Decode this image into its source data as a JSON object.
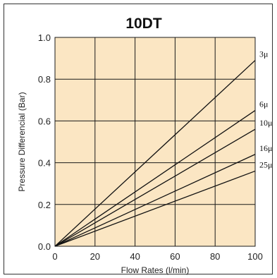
{
  "chart_data": {
    "type": "line",
    "title": "10DT",
    "xlabel": "Flow Rates (l/min)",
    "ylabel": "Pressure Differencial (Bar)",
    "xlim": [
      0,
      100
    ],
    "ylim": [
      0,
      1.0
    ],
    "x_ticks": [
      "0",
      "20",
      "40",
      "60",
      "80",
      "100"
    ],
    "y_ticks": [
      "0.0",
      "0.2",
      "0.4",
      "0.6",
      "0.8",
      "1.0"
    ],
    "grid": true,
    "legend": "inline labels at right end of lines",
    "colors": {
      "plot_background": "#fbe6c3",
      "grid": "#1a1a1a",
      "lines": "#111111"
    },
    "series": [
      {
        "name": "3μ",
        "x": [
          0,
          100
        ],
        "values": [
          0,
          0.89
        ]
      },
      {
        "name": "6μ",
        "x": [
          0,
          100
        ],
        "values": [
          0,
          0.65
        ]
      },
      {
        "name": "10μ",
        "x": [
          0,
          100
        ],
        "values": [
          0,
          0.56
        ]
      },
      {
        "name": "16μ",
        "x": [
          0,
          100
        ],
        "values": [
          0,
          0.44
        ]
      },
      {
        "name": "25μ",
        "x": [
          0,
          100
        ],
        "values": [
          0,
          0.36
        ]
      }
    ]
  }
}
